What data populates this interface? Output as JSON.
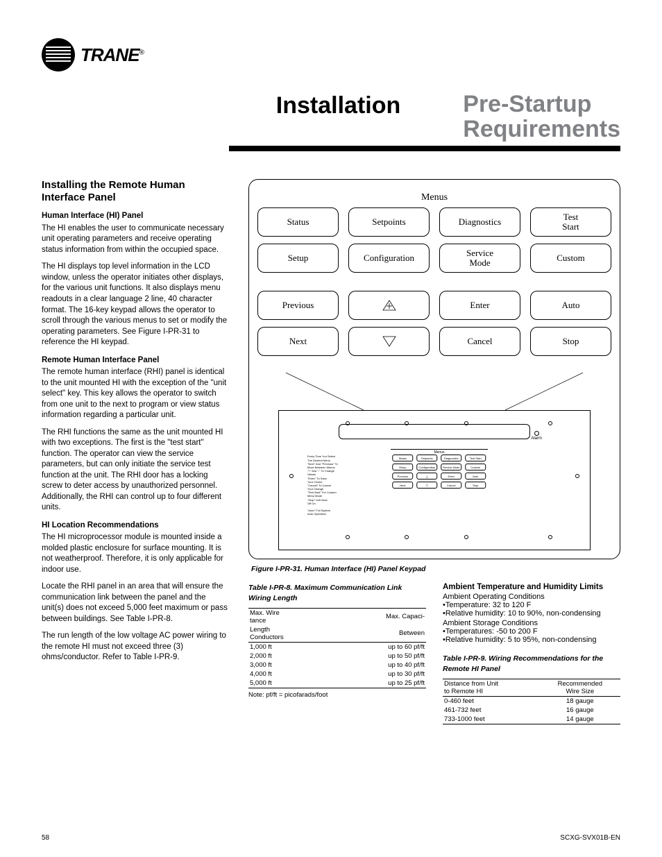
{
  "logo_text": "TRANE",
  "title_install": "Installation",
  "title_prestart": "Pre-Startup\nRequirements",
  "section_heading": "Installing the Remote Human Interface Panel",
  "sub1": "Human Interface (HI) Panel",
  "p1": "The HI enables the user to communicate necessary unit operating parameters and receive operating status information from within the occupied space.",
  "p2": "The HI displays top level information in the LCD window, unless the operator initiates other displays, for the various unit functions. It also displays menu readouts in a clear language 2 line, 40 character format. The 16-key keypad allows the operator to scroll through the various menus to set or modify the operating parameters. See Figure I-PR-31 to reference the HI keypad.",
  "sub2": "Remote Human Interface Panel",
  "p3": "The remote human interface (RHI) panel is identical to the unit mounted HI with the exception of the \"unit select\" key. This key allows the operator to switch from one unit to the next to program or view status information regarding a particular unit.",
  "p4": "The RHI functions the same as the unit mounted HI with two exceptions. The first is the \"test start\" function. The operator can view the service parameters, but can only initiate the service test function at the unit. The RHI door has a locking screw to deter access by unauthorized personnel. Additionally, the RHI can control up to four different units.",
  "sub3": "HI Location Recommendations",
  "p5": "The HI microprocessor module is mounted inside a molded plastic enclosure for surface mounting. It is not weatherproof. Therefore, it is only applicable for indoor use.",
  "p6": "Locate the RHI panel in an area that will ensure the communication link between the panel and the unit(s) does not exceed 5,000 feet maximum or pass between buildings. See Table I-PR-8.",
  "p7": "The run length of the low voltage AC power wiring to the remote HI must not exceed three (3) ohms/conductor. Refer to Table I-PR-9.",
  "menus_label": "Menus",
  "keys": [
    "Status",
    "Setpoints",
    "Diagnostics",
    "Test\nStart",
    "Setup",
    "Configuration",
    "Service\nMode",
    "Custom",
    "Previous",
    "+",
    "Enter",
    "Auto",
    "Next",
    "▽",
    "Cancel",
    "Stop"
  ],
  "mini_keys": [
    "Status",
    "Setpoints",
    "Diagnostics",
    "Test Start",
    "Setup",
    "Configuration",
    "Service Mode",
    "Custom",
    "Previous",
    "△",
    "Enter",
    "Auto",
    "Next",
    "▽",
    "Cancel",
    "Stop"
  ],
  "mini_text": "Every Time You Select\nThe Desired Menu\n\"Next\" And \"Previous\" To\nMove Between Menus\n\"+\" And \"-\" To Change\nValues\n\"Enter\" To Save\nYour Choice\n\"Cancel\" To Cancel\nYour Change\n\"Test Start\" For Custom\nMenu Mode\n\"Stop\" Unit Now:\nOff On\n\n\"Auto\" Full System\nAuto Operation",
  "alarm_label": "Alarm",
  "figure_caption": "Figure I-PR-31. Human Interface (HI) Panel Keypad",
  "table8": {
    "title": "Table I-PR-8. Maximum Communication Link Wiring Length",
    "h1": "Max. Wire\ntance",
    "h2": "Max. Capaci-",
    "h3": "Length\nConductors",
    "h4": "Between",
    "rows": [
      [
        "1,000 ft",
        "up to 60 pf/ft"
      ],
      [
        "2,000 ft",
        "up to 50 pf/ft"
      ],
      [
        "3,000 ft",
        "up to 40 pf/ft"
      ],
      [
        "4,000 ft",
        "up to 30 pf/ft"
      ],
      [
        "5,000 ft",
        "up to 25 pf/ft"
      ]
    ],
    "note": "Note: pf/ft = picofarads/foot"
  },
  "ambient": {
    "heading": "Ambient Temperature and Humidity Limits",
    "op_label": "Ambient Operating Conditions",
    "op_items": [
      "Temperature: 32 to 120 F",
      "Relative humidity: 10 to 90%, non-condensing"
    ],
    "st_label": "Ambient Storage Conditions",
    "st_items": [
      "Temperatures: -50 to 200 F",
      "Relative humidity: 5 to 95%, non-condensing"
    ]
  },
  "table9": {
    "title": "Table I-PR-9. Wiring Recommendations for the Remote HI Panel",
    "h1": "Distance from Unit\nto Remote HI",
    "h2": "Recommended\nWire Size",
    "rows": [
      [
        "0-460 feet",
        "18 gauge"
      ],
      [
        "461-732 feet",
        "16 gauge"
      ],
      [
        "733-1000 feet",
        "14 gauge"
      ]
    ]
  },
  "page_number": "58",
  "doc_id": "SCXG-SVX01B-EN"
}
